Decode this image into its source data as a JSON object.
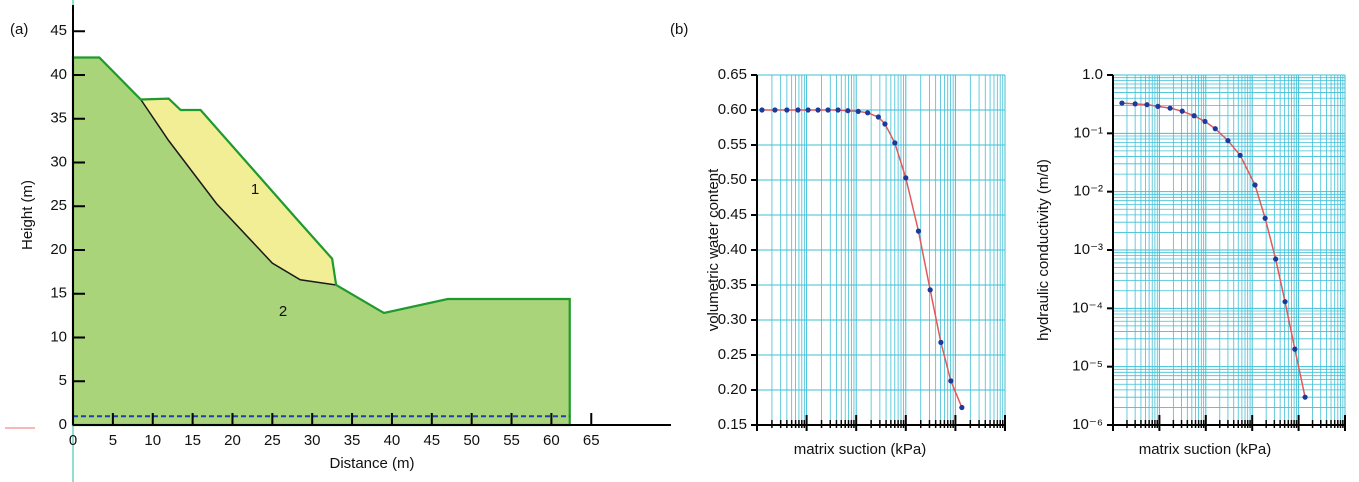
{
  "chart_data": [
    {
      "type": "section",
      "label": "(a)",
      "xlabel": "Distance (m)",
      "ylabel": "Height (m)",
      "xlim": [
        0,
        75
      ],
      "ylim": [
        0,
        48
      ],
      "xticks": [
        0,
        5,
        10,
        15,
        20,
        25,
        30,
        35,
        40,
        45,
        50,
        55,
        60,
        65
      ],
      "yticks": [
        0,
        5,
        10,
        15,
        20,
        25,
        30,
        35,
        40,
        45
      ],
      "regions": [
        {
          "label": "2",
          "color": "#a9d47a",
          "edge_color": "#1f9a2c",
          "x": [
            0,
            0,
            3.3,
            8.5,
            12,
            13.5,
            16,
            22,
            28,
            32.5,
            33,
            39,
            47,
            62.3,
            62.3
          ],
          "y": [
            0,
            42,
            42,
            37.2,
            37.3,
            36,
            36,
            29.8,
            23.6,
            19,
            16,
            12.8,
            14.4,
            14.4,
            0
          ]
        },
        {
          "label": "1",
          "color": "#f2ee96",
          "edge_color": "#1a1a1a",
          "x": [
            8.5,
            12,
            13.5,
            16,
            22,
            28,
            32.5,
            33,
            28.5,
            25,
            18,
            12
          ],
          "y": [
            37.2,
            37.3,
            36,
            36,
            29.8,
            23.6,
            19,
            16,
            16.6,
            18.5,
            25.3,
            32.5
          ]
        }
      ],
      "water_table": 1,
      "water_color": "#1f3fb0"
    },
    {
      "type": "line",
      "label": "(b)",
      "xlabel": "matrix suction (kPa)",
      "ylabel": "volumetric water content",
      "log_x": true,
      "log_y": false,
      "grid": true,
      "grid_color": "#3fbfd6",
      "xlim": [
        0.01,
        1000
      ],
      "xticks": [
        0.01,
        0.1,
        1,
        10,
        100,
        1000
      ],
      "ylim": [
        0.15,
        0.65
      ],
      "yticks": [
        0.15,
        {
          "value": 0.2,
          "label": "0.20"
        },
        0.25,
        {
          "value": 0.3,
          "label": "0.30"
        },
        0.35,
        {
          "value": 0.4,
          "label": "0.40"
        },
        0.45,
        {
          "value": 0.5,
          "label": "0.50"
        },
        0.55,
        {
          "value": 0.6,
          "label": "0.60"
        },
        0.65
      ],
      "line_color": "#e05a5a",
      "marker_color": "#1a3a9c",
      "x": [
        0.0126,
        0.023,
        0.04,
        0.067,
        0.107,
        0.17,
        0.27,
        0.43,
        0.68,
        1.1,
        1.7,
        2.8,
        3.8,
        6,
        10,
        18,
        31,
        51,
        81,
        135
      ],
      "values": [
        0.6,
        0.6,
        0.6,
        0.6,
        0.6,
        0.6,
        0.6,
        0.6,
        0.599,
        0.598,
        0.596,
        0.59,
        0.58,
        0.553,
        0.503,
        0.427,
        0.343,
        0.268,
        0.213,
        0.175
      ]
    },
    {
      "type": "line",
      "xlabel": "matrix suction (kPa)",
      "ylabel": "hydraulic conductivity (m/d)",
      "log_x": true,
      "log_y": true,
      "grid": true,
      "grid_color": "#3fbfd6",
      "xlim": [
        0.01,
        1000
      ],
      "xticks": [
        0.01,
        0.1,
        1,
        10,
        100,
        1000
      ],
      "ylim": [
        1e-06,
        1
      ],
      "yticks": [
        {
          "value": 1e-06,
          "label": "10⁻⁶"
        },
        {
          "value": 1e-05,
          "label": "10⁻⁵"
        },
        {
          "value": 0.0001,
          "label": "10⁻⁴"
        },
        {
          "value": 0.001,
          "label": "10⁻³"
        },
        {
          "value": 0.01,
          "label": "10⁻²"
        },
        {
          "value": 0.1,
          "label": "10⁻¹"
        },
        {
          "value": 1,
          "label": "1.0"
        }
      ],
      "line_color": "#e05a5a",
      "marker_color": "#1a3a9c",
      "x": [
        0.0156,
        0.03,
        0.054,
        0.093,
        0.17,
        0.31,
        0.56,
        0.96,
        1.6,
        3,
        5.5,
        11.5,
        19,
        32,
        51,
        83,
        138
      ],
      "values": [
        0.33,
        0.32,
        0.31,
        0.29,
        0.27,
        0.24,
        0.2,
        0.16,
        0.12,
        0.075,
        0.042,
        0.013,
        0.0035,
        0.0007,
        0.00013,
        2e-05,
        3e-06
      ]
    }
  ]
}
